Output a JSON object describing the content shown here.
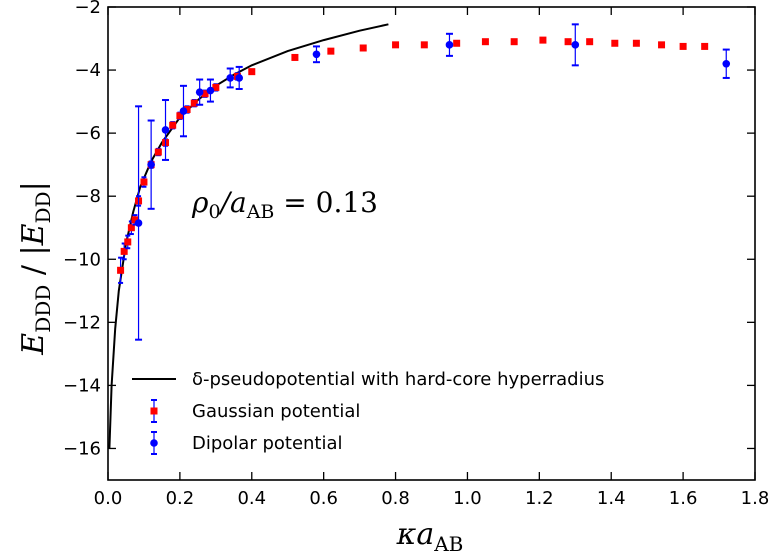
{
  "chart_data": {
    "type": "scatter",
    "xlabel": "κa_AB",
    "ylabel": "E_DDD / |E_DD|",
    "xlim": [
      0.0,
      1.8
    ],
    "ylim": [
      -17,
      -2
    ],
    "xticks": [
      0.0,
      0.2,
      0.4,
      0.6,
      0.8,
      1.0,
      1.2,
      1.4,
      1.6,
      1.8
    ],
    "yticks": [
      -16,
      -14,
      -12,
      -10,
      -8,
      -6,
      -4,
      -2
    ],
    "xtick_labels": [
      "0.0",
      "0.2",
      "0.4",
      "0.6",
      "0.8",
      "1.0",
      "1.2",
      "1.4",
      "1.6",
      "1.8"
    ],
    "ytick_labels": [
      "−16",
      "−14",
      "−12",
      "−10",
      "−8",
      "−6",
      "−4",
      "−2"
    ],
    "annotation": "ρ0/a_AB = 0.13",
    "legend_position": "bottom-left",
    "grid": false,
    "series": [
      {
        "name": "δ-pseudopotential with hard-core hyperradius",
        "kind": "line",
        "color": "#000000",
        "x": [
          0.004,
          0.01,
          0.02,
          0.03,
          0.05,
          0.07,
          0.09,
          0.12,
          0.15,
          0.2,
          0.25,
          0.3,
          0.35,
          0.4,
          0.5,
          0.6,
          0.7,
          0.78
        ],
        "y": [
          -16.0,
          -14.0,
          -12.2,
          -11.0,
          -9.5,
          -8.5,
          -7.7,
          -6.9,
          -6.3,
          -5.5,
          -4.95,
          -4.5,
          -4.15,
          -3.85,
          -3.4,
          -3.05,
          -2.75,
          -2.55
        ]
      },
      {
        "name": "Gaussian potential",
        "kind": "errorbar",
        "marker": "square",
        "color": "#ff0000",
        "errcolor": "#0000ff",
        "x": [
          0.035,
          0.045,
          0.055,
          0.065,
          0.075,
          0.085,
          0.1,
          0.12,
          0.14,
          0.16,
          0.18,
          0.2,
          0.22,
          0.24,
          0.27,
          0.3,
          0.36,
          0.4,
          0.52,
          0.62,
          0.71,
          0.8,
          0.88,
          0.97,
          1.05,
          1.13,
          1.21,
          1.28,
          1.34,
          1.41,
          1.47,
          1.54,
          1.6,
          1.66
        ],
        "y": [
          -10.35,
          -9.75,
          -9.45,
          -9.0,
          -8.75,
          -8.15,
          -7.55,
          -7.0,
          -6.6,
          -6.3,
          -5.75,
          -5.45,
          -5.25,
          -5.05,
          -4.75,
          -4.55,
          -4.2,
          -4.05,
          -3.6,
          -3.4,
          -3.3,
          -3.2,
          -3.2,
          -3.15,
          -3.1,
          -3.1,
          -3.05,
          -3.1,
          -3.1,
          -3.15,
          -3.15,
          -3.2,
          -3.25,
          -3.25
        ],
        "yerr": [
          0.4,
          0.25,
          0.2,
          0.2,
          0.15,
          0.15,
          0.15,
          0.1,
          0.1,
          0.1,
          0.1,
          0.1,
          0.1,
          0.1,
          0.1,
          0.1,
          0.1,
          0.05,
          0.05,
          0.05,
          0.05,
          0.05,
          0.05,
          0.05,
          0.05,
          0.05,
          0.05,
          0.05,
          0.05,
          0.05,
          0.05,
          0.05,
          0.05,
          0.05
        ]
      },
      {
        "name": "Dipolar potential",
        "kind": "errorbar",
        "marker": "circle",
        "color": "#0000ff",
        "errcolor": "#0000ff",
        "x": [
          0.085,
          0.12,
          0.16,
          0.21,
          0.255,
          0.285,
          0.34,
          0.365,
          0.58,
          0.95,
          1.3,
          1.72
        ],
        "y": [
          -8.85,
          -7.0,
          -5.9,
          -5.3,
          -4.7,
          -4.65,
          -4.25,
          -4.25,
          -3.5,
          -3.2,
          -3.2,
          -3.8
        ],
        "yerr": [
          3.7,
          1.4,
          0.95,
          0.8,
          0.4,
          0.35,
          0.3,
          0.35,
          0.25,
          0.35,
          0.65,
          0.45
        ]
      }
    ]
  }
}
